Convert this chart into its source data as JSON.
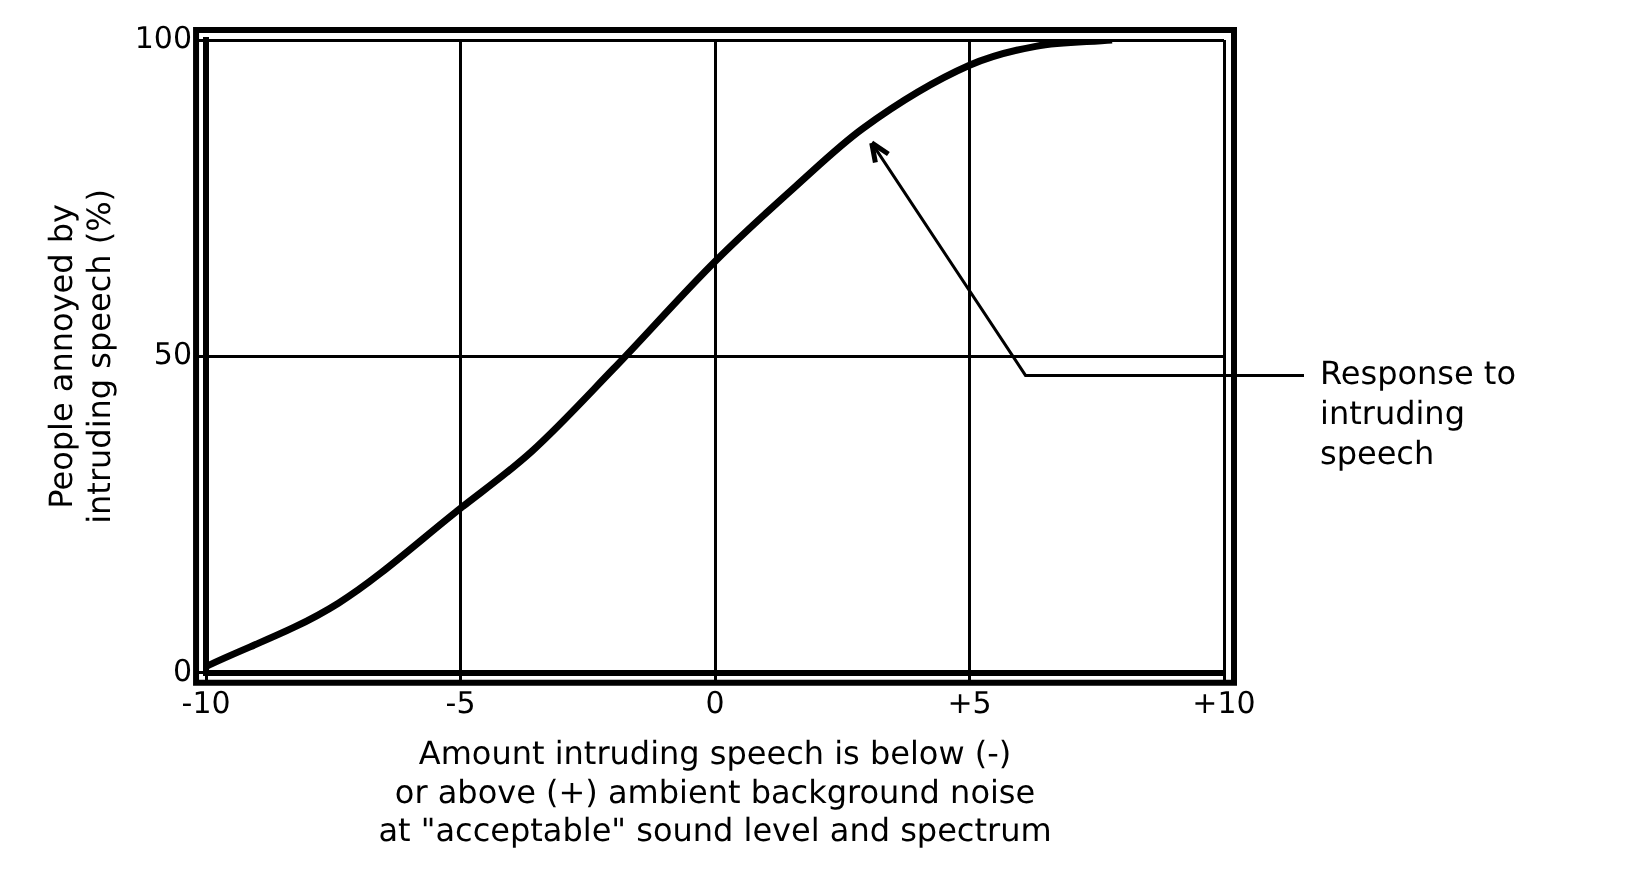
{
  "chart_data": {
    "type": "line",
    "xlabel": "Amount intruding speech is below (-)\nor above (+) ambient background noise\nat \"acceptable\" sound level and spectrum",
    "ylabel": "People annoyed by\nintruding speech (%)",
    "x": [
      -10,
      -7.4,
      -5,
      -3.6,
      -2,
      0,
      1.6,
      2.9,
      5,
      6.3,
      7.8
    ],
    "series": [
      {
        "color": "#000000",
        "values": [
          1,
          11,
          26,
          35,
          48,
          65,
          77,
          86,
          96,
          99,
          100
        ]
      }
    ],
    "xlim": [
      -10,
      10
    ],
    "xticks": [
      -10,
      -5,
      0,
      {
        "value": 5,
        "label": "+5"
      },
      {
        "value": 10,
        "label": "+10"
      }
    ],
    "ylim": [
      0,
      100
    ],
    "yticks": [
      0,
      50,
      100
    ],
    "grid": true,
    "legend": false,
    "marker": "none",
    "line_style": "solid",
    "annotations": [
      {
        "text": "Response to intruding speech",
        "x": 3,
        "y": 85
      }
    ]
  }
}
